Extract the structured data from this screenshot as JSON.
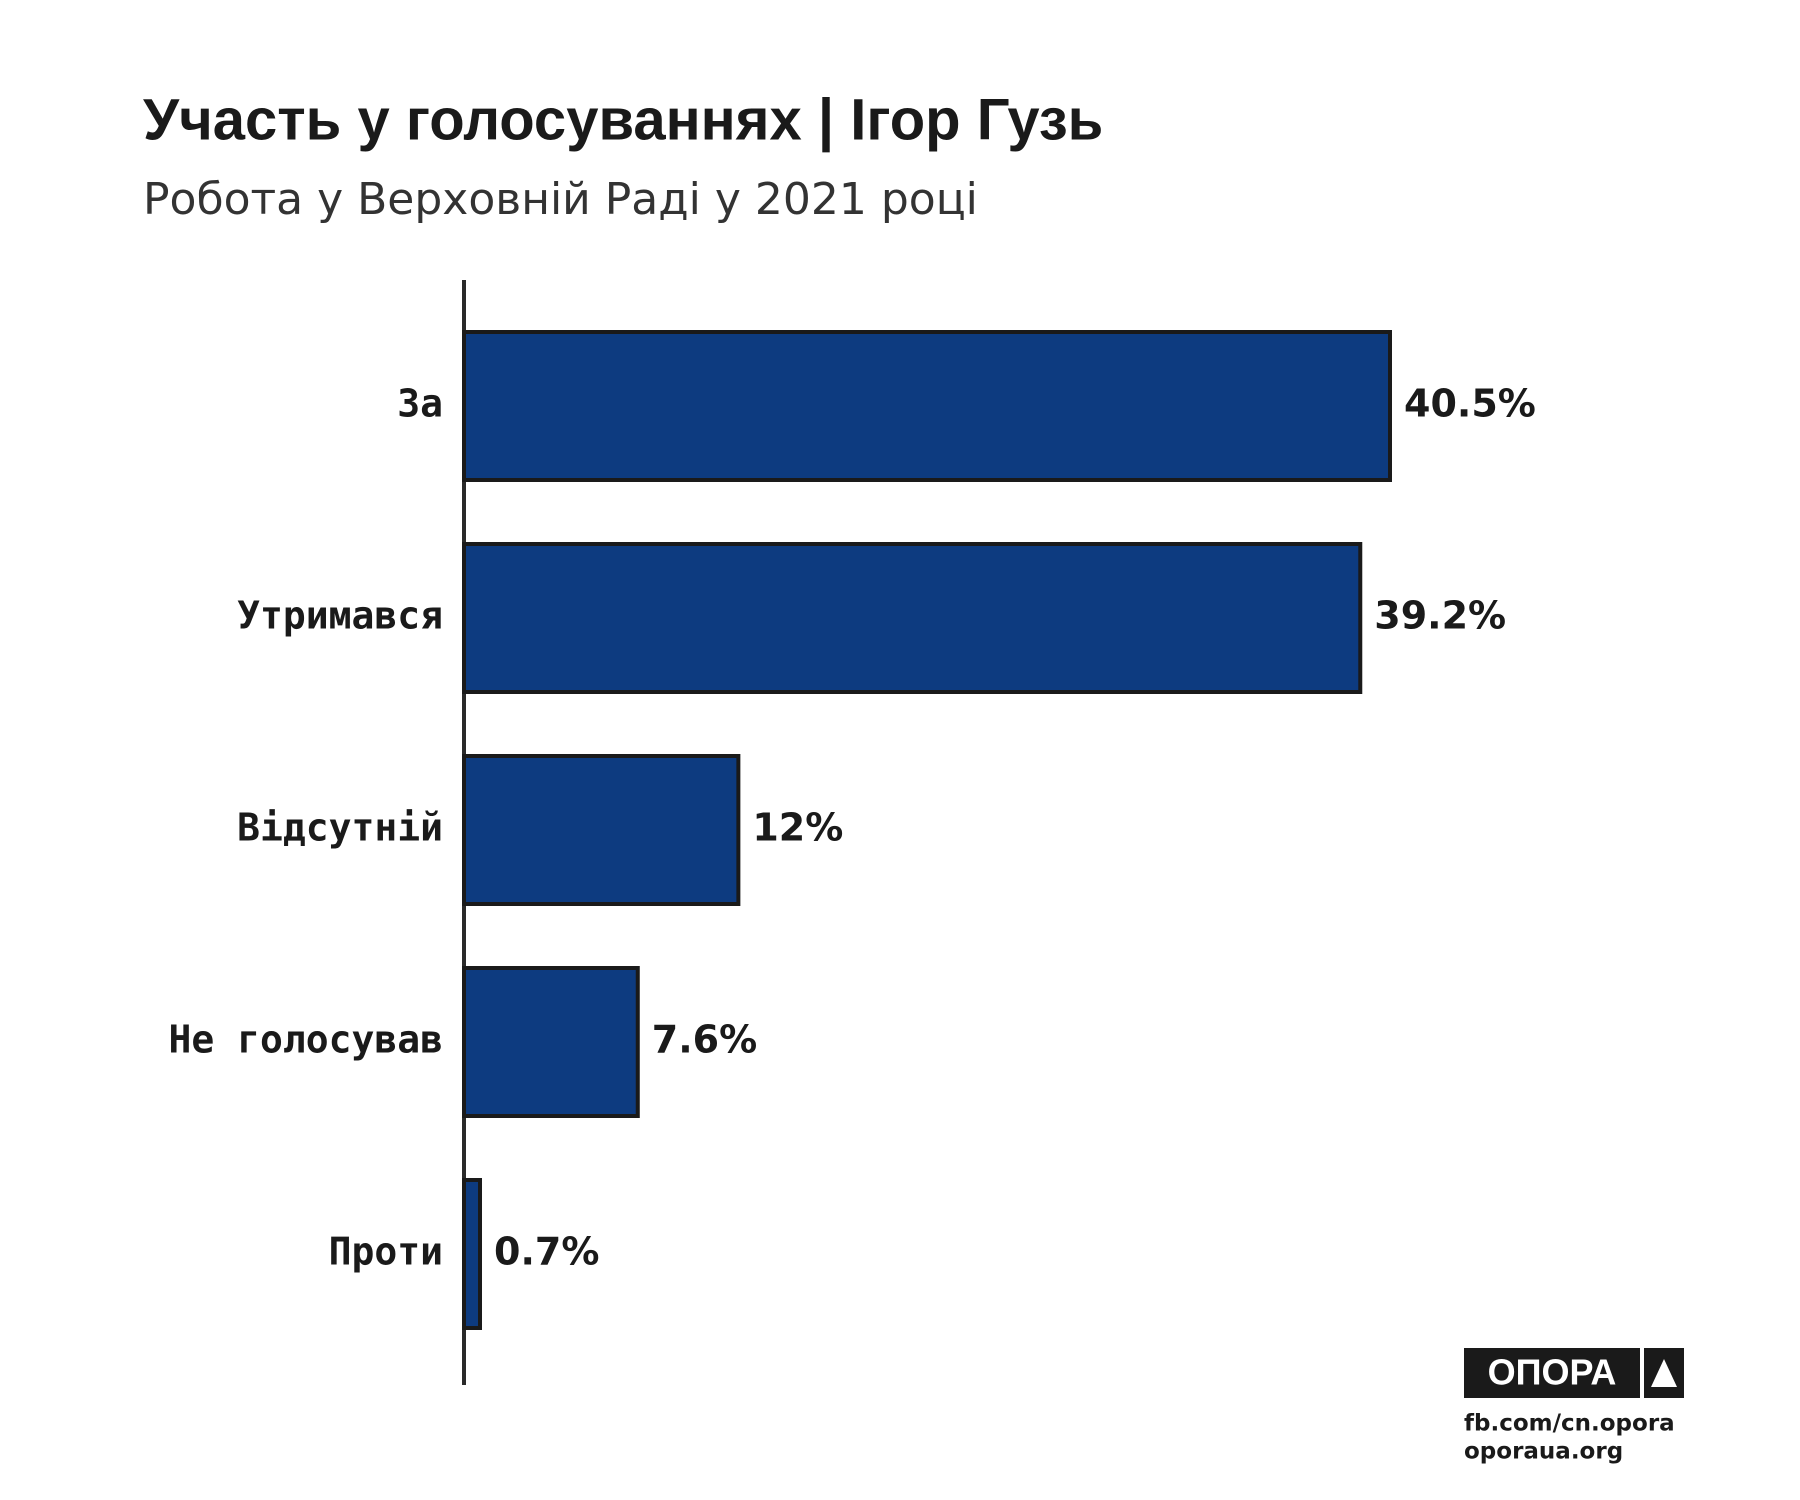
{
  "chart_data": {
    "type": "bar",
    "orientation": "horizontal",
    "title": "Участь у голосуваннях | Ігор Гузь",
    "subtitle": "Робота у Верховній Раді у 2021 році",
    "categories": [
      "За",
      "Утримався",
      "Відсутній",
      "Не голосував",
      "Проти"
    ],
    "values": [
      40.5,
      39.2,
      12,
      7.6,
      0.7
    ],
    "value_labels": [
      "40.5%",
      "39.2%",
      "12%",
      "7.6%",
      "0.7%"
    ],
    "color": "#0d3b80"
  },
  "footer": {
    "logo": "ОПОРА",
    "links": [
      "fb.com/cn.opora",
      "oporaua.org"
    ]
  }
}
